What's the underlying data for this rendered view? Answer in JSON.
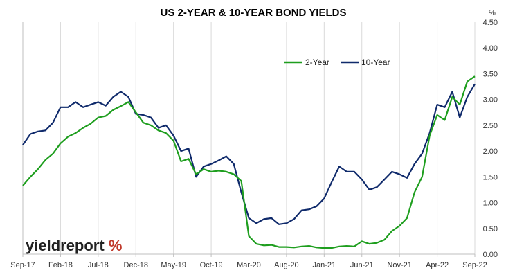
{
  "chart_data": {
    "type": "line",
    "title": "US 2-YEAR & 10-YEAR BOND YIELDS",
    "y_unit": "%",
    "ylim": [
      0,
      4.5
    ],
    "y_ticks": [
      "0.00",
      "0.50",
      "1.00",
      "1.50",
      "2.00",
      "2.50",
      "3.00",
      "3.50",
      "4.00",
      "4.50"
    ],
    "y_axis_side": "right",
    "x_tick_labels": [
      "Sep-17",
      "Feb-18",
      "Jul-18",
      "Dec-18",
      "May-19",
      "Oct-19",
      "Mar-20",
      "Aug-20",
      "Jan-21",
      "Jun-21",
      "Nov-21",
      "Apr-22",
      "Sep-22"
    ],
    "grid": "vertical",
    "legend_position": "top-right",
    "colors": {
      "two_year": "#1e9e1e",
      "ten_year": "#0f2a6b",
      "grid": "#d9d9d9",
      "logo_accent": "#c0392b"
    },
    "series": [
      {
        "name": "2-Year",
        "x": [
          "Sep-17",
          "Oct-17",
          "Nov-17",
          "Dec-17",
          "Jan-18",
          "Feb-18",
          "Mar-18",
          "Apr-18",
          "May-18",
          "Jun-18",
          "Jul-18",
          "Aug-18",
          "Sep-18",
          "Oct-18",
          "Nov-18",
          "Dec-18",
          "Jan-19",
          "Feb-19",
          "Mar-19",
          "Apr-19",
          "May-19",
          "Jun-19",
          "Jul-19",
          "Aug-19",
          "Sep-19",
          "Oct-19",
          "Nov-19",
          "Dec-19",
          "Jan-20",
          "Feb-20",
          "Mar-20",
          "Apr-20",
          "May-20",
          "Jun-20",
          "Jul-20",
          "Aug-20",
          "Sep-20",
          "Oct-20",
          "Nov-20",
          "Dec-20",
          "Jan-21",
          "Feb-21",
          "Mar-21",
          "Apr-21",
          "May-21",
          "Jun-21",
          "Jul-21",
          "Aug-21",
          "Sep-21",
          "Oct-21",
          "Nov-21",
          "Dec-21",
          "Jan-22",
          "Feb-22",
          "Mar-22",
          "Apr-22",
          "May-22",
          "Jun-22",
          "Jul-22",
          "Aug-22",
          "Sep-22"
        ],
        "values": [
          1.33,
          1.5,
          1.65,
          1.83,
          1.95,
          2.15,
          2.28,
          2.35,
          2.45,
          2.53,
          2.65,
          2.68,
          2.8,
          2.87,
          2.95,
          2.75,
          2.55,
          2.5,
          2.4,
          2.35,
          2.2,
          1.8,
          1.85,
          1.55,
          1.65,
          1.6,
          1.62,
          1.6,
          1.55,
          1.42,
          0.35,
          0.2,
          0.17,
          0.18,
          0.14,
          0.14,
          0.13,
          0.15,
          0.16,
          0.13,
          0.12,
          0.12,
          0.15,
          0.16,
          0.15,
          0.25,
          0.2,
          0.22,
          0.28,
          0.45,
          0.55,
          0.7,
          1.2,
          1.5,
          2.3,
          2.7,
          2.6,
          3.05,
          2.9,
          3.35,
          3.45
        ]
      },
      {
        "name": "10-Year",
        "x": [
          "Sep-17",
          "Oct-17",
          "Nov-17",
          "Dec-17",
          "Jan-18",
          "Feb-18",
          "Mar-18",
          "Apr-18",
          "May-18",
          "Jun-18",
          "Jul-18",
          "Aug-18",
          "Sep-18",
          "Oct-18",
          "Nov-18",
          "Dec-18",
          "Jan-19",
          "Feb-19",
          "Mar-19",
          "Apr-19",
          "May-19",
          "Jun-19",
          "Jul-19",
          "Aug-19",
          "Sep-19",
          "Oct-19",
          "Nov-19",
          "Dec-19",
          "Jan-20",
          "Feb-20",
          "Mar-20",
          "Apr-20",
          "May-20",
          "Jun-20",
          "Jul-20",
          "Aug-20",
          "Sep-20",
          "Oct-20",
          "Nov-20",
          "Dec-20",
          "Jan-21",
          "Feb-21",
          "Mar-21",
          "Apr-21",
          "May-21",
          "Jun-21",
          "Jul-21",
          "Aug-21",
          "Sep-21",
          "Oct-21",
          "Nov-21",
          "Dec-21",
          "Jan-22",
          "Feb-22",
          "Mar-22",
          "Apr-22",
          "May-22",
          "Jun-22",
          "Jul-22",
          "Aug-22",
          "Sep-22"
        ],
        "values": [
          2.12,
          2.33,
          2.38,
          2.4,
          2.55,
          2.85,
          2.85,
          2.95,
          2.85,
          2.9,
          2.95,
          2.88,
          3.05,
          3.15,
          3.05,
          2.72,
          2.7,
          2.65,
          2.45,
          2.5,
          2.3,
          2.0,
          2.05,
          1.5,
          1.7,
          1.75,
          1.82,
          1.9,
          1.75,
          1.2,
          0.7,
          0.6,
          0.68,
          0.7,
          0.58,
          0.6,
          0.68,
          0.85,
          0.87,
          0.93,
          1.08,
          1.4,
          1.7,
          1.6,
          1.6,
          1.45,
          1.25,
          1.3,
          1.45,
          1.6,
          1.55,
          1.48,
          1.75,
          1.95,
          2.35,
          2.9,
          2.85,
          3.15,
          2.65,
          3.05,
          3.3
        ]
      }
    ]
  },
  "logo": {
    "text_dark": "yieldreport",
    "text_accent": "%"
  }
}
